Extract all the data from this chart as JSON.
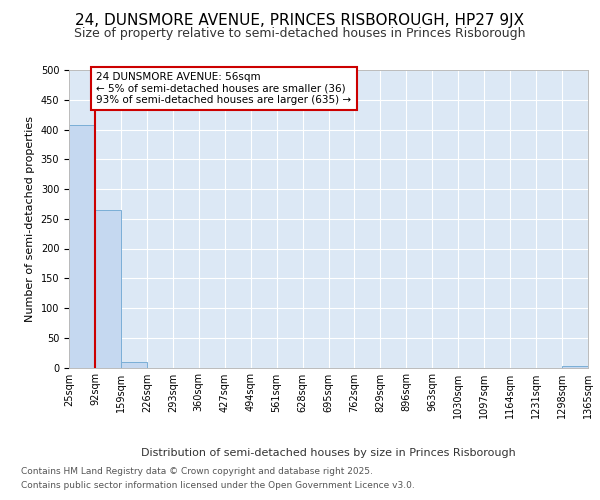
{
  "title1": "24, DUNSMORE AVENUE, PRINCES RISBOROUGH, HP27 9JX",
  "title2": "Size of property relative to semi-detached houses in Princes Risborough",
  "xlabel": "Distribution of semi-detached houses by size in Princes Risborough",
  "ylabel": "Number of semi-detached properties",
  "bar_values": [
    408,
    264,
    9,
    0,
    0,
    0,
    0,
    0,
    0,
    0,
    0,
    0,
    0,
    0,
    0,
    0,
    0,
    0,
    0,
    2
  ],
  "bar_labels": [
    "25sqm",
    "92sqm",
    "159sqm",
    "226sqm",
    "293sqm",
    "360sqm",
    "427sqm",
    "494sqm",
    "561sqm",
    "628sqm",
    "695sqm",
    "762sqm",
    "829sqm",
    "896sqm",
    "963sqm",
    "1030sqm",
    "1097sqm",
    "1164sqm",
    "1231sqm",
    "1298sqm",
    "1365sqm"
  ],
  "bar_color": "#c5d8f0",
  "bar_edge_color": "#7aaed6",
  "annotation_text": "24 DUNSMORE AVENUE: 56sqm\n← 5% of semi-detached houses are smaller (36)\n93% of semi-detached houses are larger (635) →",
  "annotation_box_color": "#ffffff",
  "annotation_box_edge_color": "#cc0000",
  "marker_line_color": "#cc0000",
  "ylim": [
    0,
    500
  ],
  "yticks": [
    0,
    50,
    100,
    150,
    200,
    250,
    300,
    350,
    400,
    450,
    500
  ],
  "background_color": "#dce8f5",
  "grid_color": "#ffffff",
  "footer_line1": "Contains HM Land Registry data © Crown copyright and database right 2025.",
  "footer_line2": "Contains public sector information licensed under the Open Government Licence v3.0.",
  "title1_fontsize": 11,
  "title2_fontsize": 9,
  "ylabel_fontsize": 8,
  "xlabel_fontsize": 8,
  "tick_fontsize": 7,
  "annotation_fontsize": 7.5,
  "footer_fontsize": 6.5
}
